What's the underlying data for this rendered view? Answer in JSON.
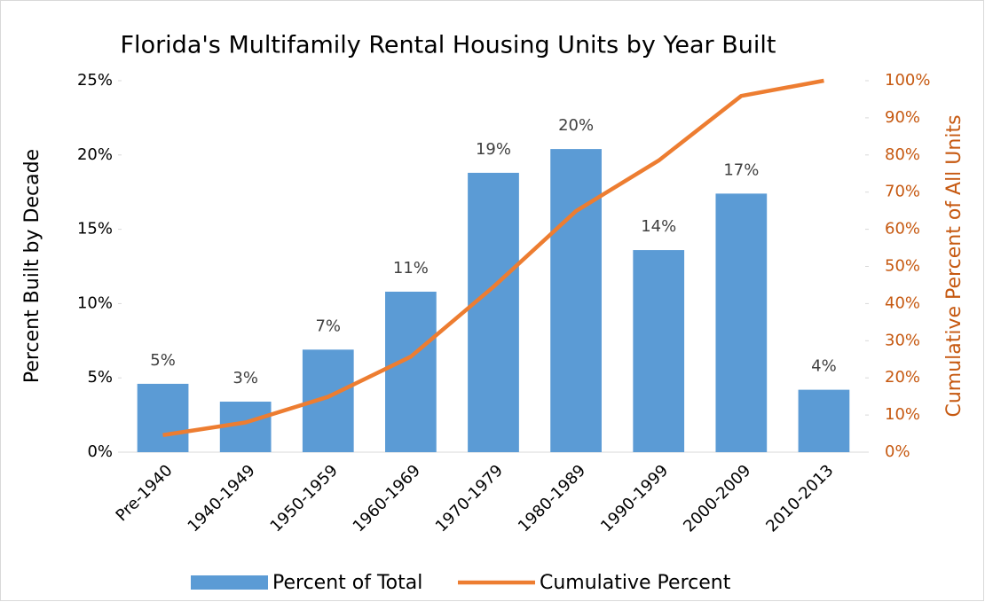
{
  "chart_data": {
    "type": "bar_line",
    "title": "Florida's Multifamily Rental Housing Units by Year Built",
    "ylabel": "Percent Built by Decade",
    "y2label": "Cumulative Percent of All Units",
    "categories": [
      "Pre-1940",
      "1940-1949",
      "1950-1959",
      "1960-1969",
      "1970-1979",
      "1980-1989",
      "1990-1999",
      "2000-2009",
      "2010-2013"
    ],
    "series": [
      {
        "name": "Percent of Total",
        "type": "bar",
        "color": "#5b9bd5",
        "values": [
          4.6,
          3.4,
          6.9,
          10.8,
          18.8,
          20.4,
          13.6,
          17.4,
          4.2
        ],
        "value_labels": [
          "5%",
          "3%",
          "7%",
          "11%",
          "19%",
          "20%",
          "14%",
          "17%",
          "4%"
        ]
      },
      {
        "name": "Cumulative Percent",
        "type": "line",
        "axis": "y2",
        "color": "#ed7d31",
        "values": [
          4.6,
          8.0,
          14.9,
          25.7,
          44.5,
          64.9,
          78.5,
          95.9,
          100
        ]
      }
    ],
    "ylim": [
      0,
      25
    ],
    "yticks": [
      {
        "value": 0,
        "label": "0%"
      },
      {
        "value": 5,
        "label": "5%"
      },
      {
        "value": 10,
        "label": "10%"
      },
      {
        "value": 15,
        "label": "15%"
      },
      {
        "value": 20,
        "label": "20%"
      },
      {
        "value": 25,
        "label": "25%"
      }
    ],
    "y2lim": [
      0,
      100
    ],
    "y2ticks": [
      {
        "value": 0,
        "label": "0%"
      },
      {
        "value": 10,
        "label": "10%"
      },
      {
        "value": 20,
        "label": "20%"
      },
      {
        "value": 30,
        "label": "30%"
      },
      {
        "value": 40,
        "label": "40%"
      },
      {
        "value": 50,
        "label": "50%"
      },
      {
        "value": 60,
        "label": "60%"
      },
      {
        "value": 70,
        "label": "70%"
      },
      {
        "value": 80,
        "label": "80%"
      },
      {
        "value": 90,
        "label": "90%"
      },
      {
        "value": 100,
        "label": "100%"
      }
    ],
    "y2color": "#c65911",
    "grid": false,
    "legend": "bottom"
  }
}
